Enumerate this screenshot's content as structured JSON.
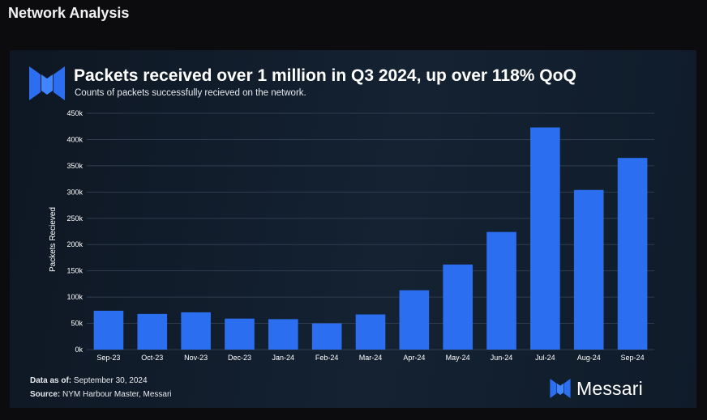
{
  "page": {
    "title": "Network Analysis"
  },
  "card": {
    "title": "Packets received over 1 million in Q3 2024, up over 118% QoQ",
    "subtitle": "Counts of packets successfully recieved on the network.",
    "data_as_of_label": "Data as of:",
    "data_as_of_value": "September 30, 2024",
    "source_label": "Source:",
    "source_value": "NYM Harbour Master, Messari",
    "brand_name": "Messari"
  },
  "colors": {
    "bar": "#2b6ff0",
    "grid": "#2f3d4e",
    "background": "#111c28",
    "text": "#ffffff"
  },
  "icons": {
    "logo": "messari-logo-icon"
  },
  "chart_data": {
    "type": "bar",
    "title": "Packets received over 1 million in Q3 2024, up over 118% QoQ",
    "subtitle": "Counts of packets successfully recieved on the network.",
    "xlabel": "",
    "ylabel": "Packets Recieved",
    "ylim": [
      0,
      450000
    ],
    "yticks": [
      0,
      50000,
      100000,
      150000,
      200000,
      250000,
      300000,
      350000,
      400000,
      450000
    ],
    "ytick_labels": [
      "0k",
      "50k",
      "100k",
      "150k",
      "200k",
      "250k",
      "300k",
      "350k",
      "400k",
      "450k"
    ],
    "categories": [
      "Sep-23",
      "Oct-23",
      "Nov-23",
      "Dec-23",
      "Jan-24",
      "Feb-24",
      "Mar-24",
      "Apr-24",
      "May-24",
      "Jun-24",
      "Jul-24",
      "Aug-24",
      "Sep-24"
    ],
    "values": [
      74000,
      68000,
      71000,
      59000,
      58000,
      50000,
      67000,
      113000,
      162000,
      224000,
      423000,
      304000,
      365000
    ],
    "grid": true,
    "legend": "none"
  }
}
